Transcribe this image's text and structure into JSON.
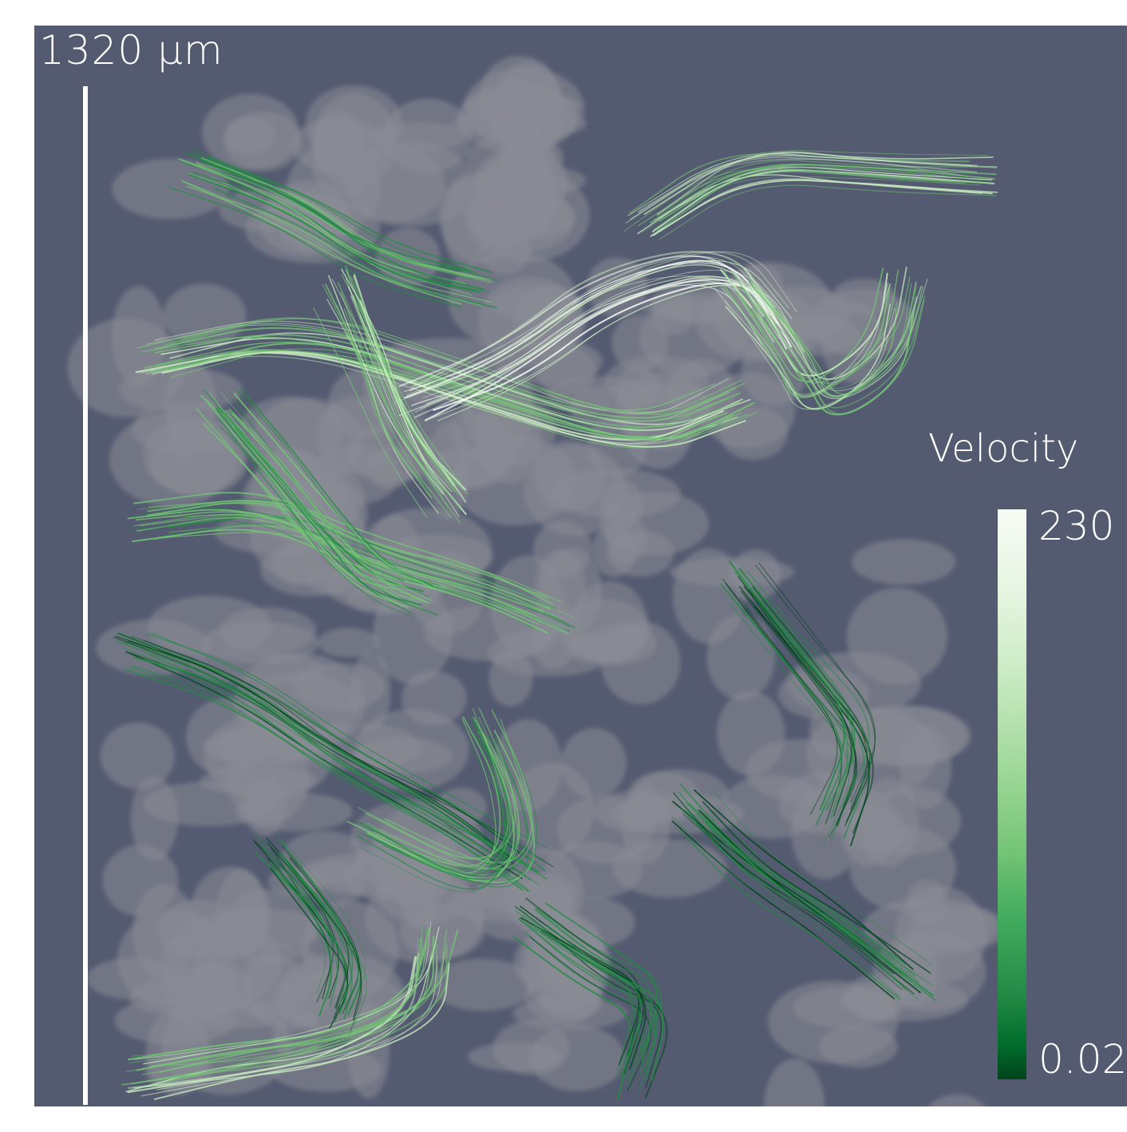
{
  "scale": {
    "value": "1320",
    "unit": "μm"
  },
  "colorbar": {
    "title": "Velocity",
    "max_label": "230",
    "min_label": "0.02",
    "colors": [
      "#f7fcf5",
      "#c7e9c0",
      "#74c476",
      "#238b45",
      "#00441b"
    ]
  },
  "colors": {
    "background": "#545a70",
    "pore": "#8a8c96",
    "scale_bar": "#ffffff"
  }
}
